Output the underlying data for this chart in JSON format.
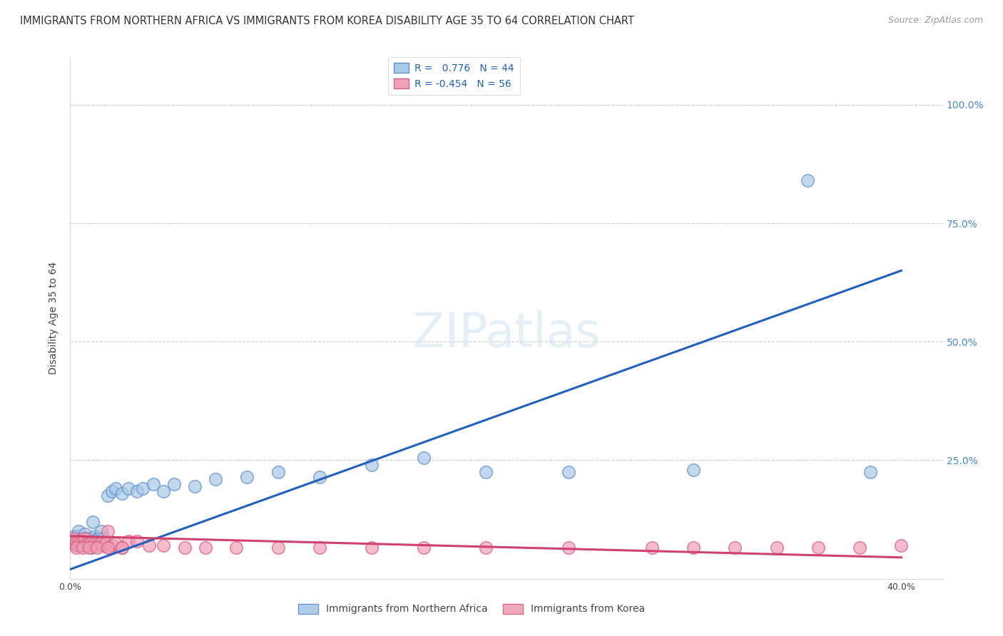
{
  "title": "IMMIGRANTS FROM NORTHERN AFRICA VS IMMIGRANTS FROM KOREA DISABILITY AGE 35 TO 64 CORRELATION CHART",
  "source": "Source: ZipAtlas.com",
  "ylabel": "Disability Age 35 to 64",
  "watermark": "ZIPatlas",
  "legend_bottom": [
    "Immigrants from Northern Africa",
    "Immigrants from Korea"
  ],
  "r_blue": 0.776,
  "n_blue": 44,
  "r_pink": -0.454,
  "n_pink": 56,
  "blue_color": "#a8c8e8",
  "pink_color": "#f0a0b8",
  "blue_edge_color": "#6090c8",
  "pink_edge_color": "#d86080",
  "blue_line_color": "#2060c0",
  "pink_line_color": "#d04070",
  "xlim": [
    0.0,
    0.42
  ],
  "ylim": [
    0.0,
    1.1
  ],
  "xticks": [
    0.0,
    0.05,
    0.1,
    0.15,
    0.2,
    0.25,
    0.3,
    0.35,
    0.4
  ],
  "yticks": [
    0.0,
    0.25,
    0.5,
    0.75,
    1.0
  ],
  "xticklabels": [
    "0.0%",
    "",
    "",
    "",
    "",
    "",
    "",
    "",
    "40.0%"
  ],
  "yticklabels_right": [
    "",
    "25.0%",
    "50.0%",
    "75.0%",
    "100.0%"
  ],
  "blue_scatter_x": [
    0.001,
    0.002,
    0.002,
    0.003,
    0.003,
    0.004,
    0.004,
    0.005,
    0.005,
    0.006,
    0.006,
    0.007,
    0.008,
    0.009,
    0.01,
    0.01,
    0.011,
    0.012,
    0.013,
    0.014,
    0.015,
    0.016,
    0.018,
    0.02,
    0.022,
    0.025,
    0.028,
    0.032,
    0.035,
    0.04,
    0.045,
    0.05,
    0.06,
    0.07,
    0.085,
    0.1,
    0.12,
    0.145,
    0.17,
    0.2,
    0.24,
    0.3,
    0.355,
    0.385
  ],
  "blue_scatter_y": [
    0.075,
    0.08,
    0.09,
    0.07,
    0.08,
    0.09,
    0.1,
    0.075,
    0.085,
    0.07,
    0.08,
    0.095,
    0.075,
    0.085,
    0.065,
    0.08,
    0.12,
    0.09,
    0.085,
    0.085,
    0.1,
    0.085,
    0.175,
    0.185,
    0.19,
    0.18,
    0.19,
    0.185,
    0.19,
    0.2,
    0.185,
    0.2,
    0.195,
    0.21,
    0.215,
    0.225,
    0.215,
    0.24,
    0.255,
    0.225,
    0.225,
    0.23,
    0.84,
    0.225
  ],
  "pink_scatter_x": [
    0.001,
    0.001,
    0.002,
    0.002,
    0.003,
    0.003,
    0.004,
    0.004,
    0.005,
    0.005,
    0.006,
    0.006,
    0.007,
    0.007,
    0.008,
    0.008,
    0.009,
    0.01,
    0.011,
    0.012,
    0.013,
    0.014,
    0.015,
    0.016,
    0.017,
    0.018,
    0.019,
    0.02,
    0.022,
    0.025,
    0.028,
    0.032,
    0.038,
    0.045,
    0.055,
    0.065,
    0.08,
    0.1,
    0.12,
    0.145,
    0.17,
    0.2,
    0.24,
    0.28,
    0.3,
    0.32,
    0.34,
    0.36,
    0.38,
    0.4,
    0.003,
    0.006,
    0.009,
    0.013,
    0.018,
    0.025
  ],
  "pink_scatter_y": [
    0.075,
    0.08,
    0.075,
    0.085,
    0.075,
    0.08,
    0.07,
    0.08,
    0.075,
    0.08,
    0.07,
    0.08,
    0.075,
    0.085,
    0.07,
    0.075,
    0.075,
    0.075,
    0.07,
    0.075,
    0.07,
    0.075,
    0.075,
    0.07,
    0.075,
    0.1,
    0.065,
    0.07,
    0.075,
    0.065,
    0.08,
    0.08,
    0.07,
    0.07,
    0.065,
    0.065,
    0.065,
    0.065,
    0.065,
    0.065,
    0.065,
    0.065,
    0.065,
    0.065,
    0.065,
    0.065,
    0.065,
    0.065,
    0.065,
    0.07,
    0.065,
    0.065,
    0.065,
    0.065,
    0.065,
    0.065
  ],
  "blue_line_x": [
    0.0,
    0.4
  ],
  "blue_line_y": [
    0.02,
    0.65
  ],
  "pink_line_x": [
    0.0,
    0.4
  ],
  "pink_line_y": [
    0.09,
    0.045
  ],
  "title_fontsize": 10.5,
  "axis_label_fontsize": 10,
  "tick_fontsize": 9,
  "legend_fontsize": 10,
  "source_fontsize": 9
}
